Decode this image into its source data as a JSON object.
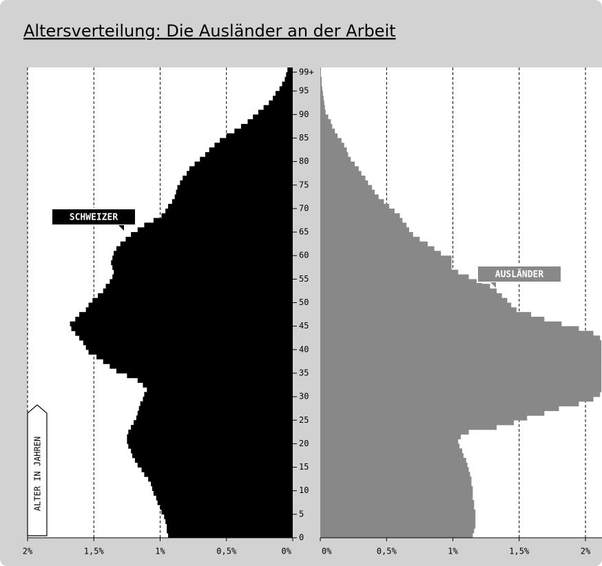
{
  "chart_data": {
    "type": "pyramid",
    "title": "Altersverteilung: Die Ausländer an der Arbeit",
    "ylabel": "ALTER IN JAHREN",
    "categories": [
      "0",
      null,
      null,
      null,
      null,
      "5",
      null,
      null,
      null,
      null,
      "10",
      null,
      null,
      null,
      null,
      "15",
      null,
      null,
      null,
      null,
      "20",
      null,
      null,
      null,
      null,
      "25",
      null,
      null,
      null,
      null,
      "30",
      null,
      null,
      null,
      null,
      "35",
      null,
      null,
      null,
      null,
      "40",
      null,
      null,
      null,
      null,
      "45",
      null,
      null,
      null,
      null,
      "50",
      null,
      null,
      null,
      null,
      "55",
      null,
      null,
      null,
      null,
      "60",
      null,
      null,
      null,
      null,
      "65",
      null,
      null,
      null,
      null,
      "70",
      null,
      null,
      null,
      null,
      "75",
      null,
      null,
      null,
      null,
      "80",
      null,
      null,
      null,
      null,
      "85",
      null,
      null,
      null,
      null,
      "90",
      null,
      null,
      null,
      null,
      "95",
      null,
      null,
      null,
      "99+"
    ],
    "xlim": [
      0,
      2
    ],
    "xticks": [
      {
        "value": 0,
        "label": "0%"
      },
      {
        "value": 0.5,
        "label": "0,5%"
      },
      {
        "value": 1,
        "label": "1%"
      },
      {
        "value": 1.5,
        "label": "1,5%"
      },
      {
        "value": 2,
        "label": "2%"
      }
    ],
    "grid": true,
    "series": [
      {
        "name": "SCHWEIZER",
        "color": "#000000",
        "side": "left",
        "values": [
          0.94,
          0.95,
          0.95,
          0.96,
          0.97,
          0.99,
          1.0,
          1.02,
          1.03,
          1.05,
          1.06,
          1.07,
          1.09,
          1.12,
          1.14,
          1.17,
          1.19,
          1.21,
          1.22,
          1.24,
          1.25,
          1.25,
          1.24,
          1.22,
          1.2,
          1.18,
          1.17,
          1.16,
          1.15,
          1.13,
          1.12,
          1.1,
          1.13,
          1.17,
          1.25,
          1.33,
          1.38,
          1.43,
          1.48,
          1.54,
          1.56,
          1.58,
          1.61,
          1.64,
          1.67,
          1.68,
          1.64,
          1.61,
          1.56,
          1.54,
          1.51,
          1.47,
          1.43,
          1.41,
          1.38,
          1.36,
          1.35,
          1.36,
          1.37,
          1.36,
          1.35,
          1.33,
          1.3,
          1.26,
          1.22,
          1.17,
          1.12,
          1.05,
          0.99,
          0.96,
          0.94,
          0.91,
          0.89,
          0.88,
          0.87,
          0.85,
          0.83,
          0.8,
          0.78,
          0.74,
          0.7,
          0.66,
          0.63,
          0.59,
          0.55,
          0.5,
          0.44,
          0.39,
          0.34,
          0.3,
          0.26,
          0.22,
          0.18,
          0.15,
          0.13,
          0.1,
          0.08,
          0.06,
          0.05,
          0.04
        ]
      },
      {
        "name": "AUSLÄNDER",
        "color": "#888888",
        "side": "right",
        "values": [
          1.15,
          1.16,
          1.17,
          1.17,
          1.17,
          1.17,
          1.16,
          1.16,
          1.15,
          1.15,
          1.15,
          1.14,
          1.14,
          1.13,
          1.12,
          1.11,
          1.1,
          1.08,
          1.07,
          1.05,
          1.04,
          1.06,
          1.12,
          1.33,
          1.46,
          1.56,
          1.69,
          1.8,
          1.95,
          2.06,
          2.11,
          2.12,
          2.12,
          2.12,
          2.12,
          2.12,
          2.12,
          2.12,
          2.12,
          2.12,
          2.12,
          2.12,
          2.11,
          2.06,
          1.95,
          1.82,
          1.69,
          1.59,
          1.48,
          1.44,
          1.41,
          1.37,
          1.33,
          1.28,
          1.22,
          1.12,
          1.04,
          0.99,
          0.99,
          0.99,
          0.91,
          0.86,
          0.81,
          0.75,
          0.7,
          0.67,
          0.65,
          0.62,
          0.6,
          0.56,
          0.52,
          0.48,
          0.44,
          0.41,
          0.39,
          0.36,
          0.34,
          0.31,
          0.29,
          0.26,
          0.23,
          0.21,
          0.2,
          0.18,
          0.16,
          0.13,
          0.11,
          0.09,
          0.08,
          0.06,
          0.04,
          0.035,
          0.03,
          0.025,
          0.02,
          0.015,
          0.01,
          0.01,
          0.005,
          0.005
        ]
      }
    ]
  }
}
